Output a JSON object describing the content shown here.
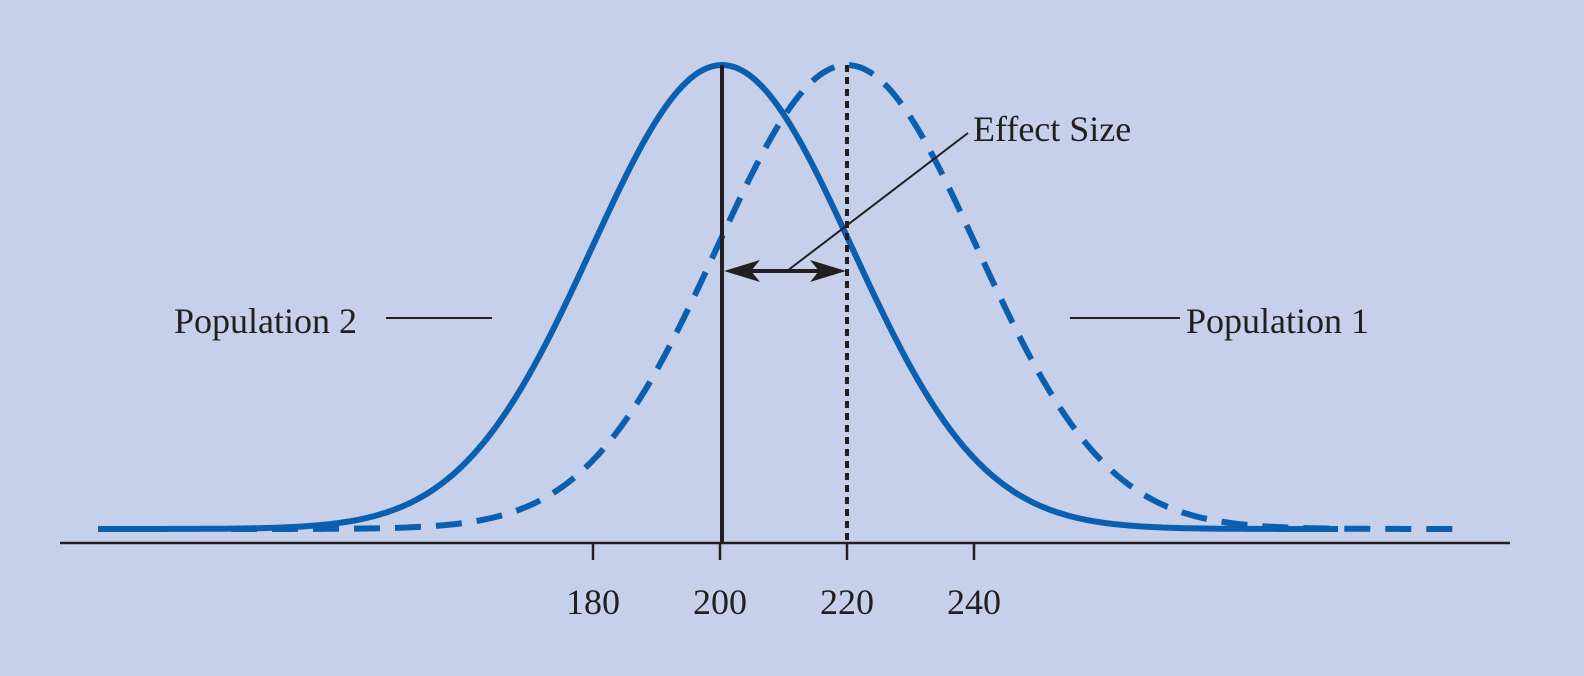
{
  "colors": {
    "background": "#c7d0ea",
    "curve": "#0b5fb0",
    "ink": "#231f20"
  },
  "diagram": {
    "ticks": [
      "180",
      "200",
      "220",
      "240"
    ],
    "labels": {
      "population_2": "Population 2",
      "population_1": "Population 1",
      "effect_size": "Effect Size"
    },
    "populations": [
      {
        "label": "Population 2",
        "mean": 200,
        "style": "solid"
      },
      {
        "label": "Population 1",
        "mean": 220,
        "style": "dashed"
      }
    ]
  }
}
